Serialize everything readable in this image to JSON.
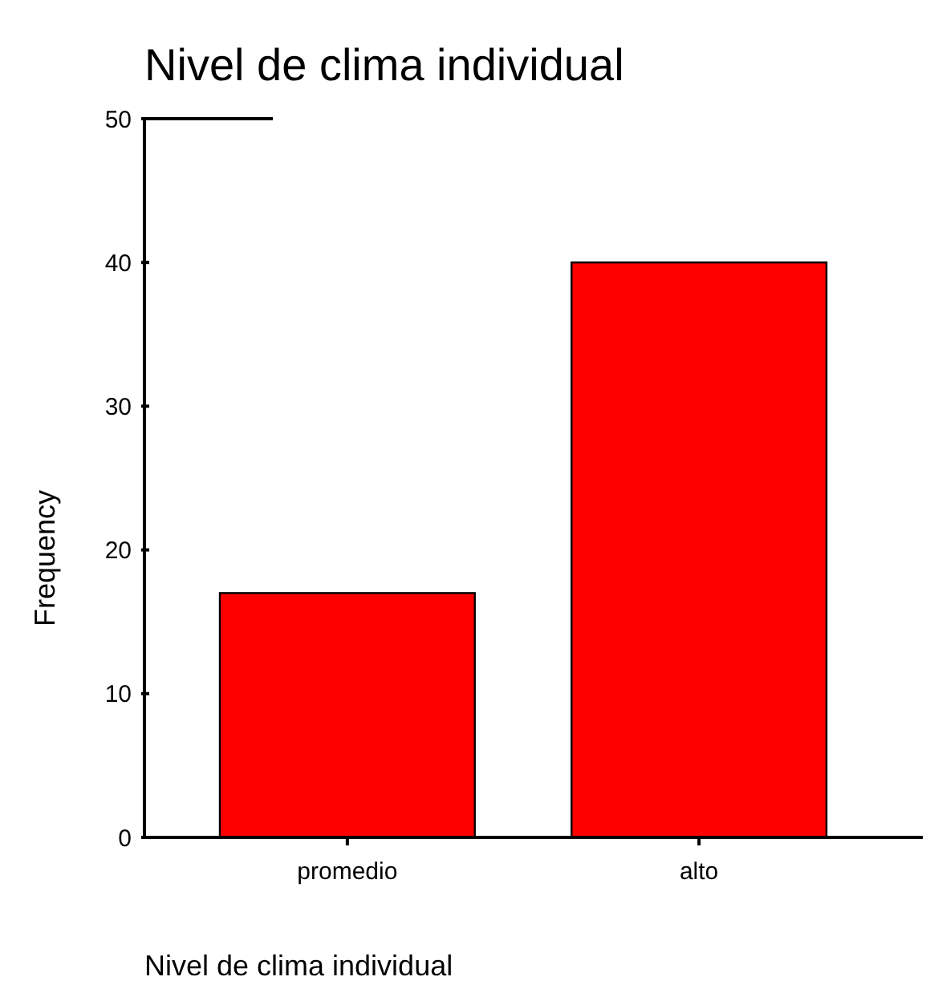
{
  "chart_data": {
    "type": "bar",
    "title": "Nivel de clima individual",
    "xlabel": "Nivel de clima individual",
    "ylabel": "Frequency",
    "categories": [
      "promedio",
      "alto"
    ],
    "values": [
      17,
      40
    ],
    "color": "#ff0000",
    "ylim": [
      0,
      50
    ],
    "yticks": [
      0,
      10,
      20,
      30,
      40,
      50
    ]
  }
}
